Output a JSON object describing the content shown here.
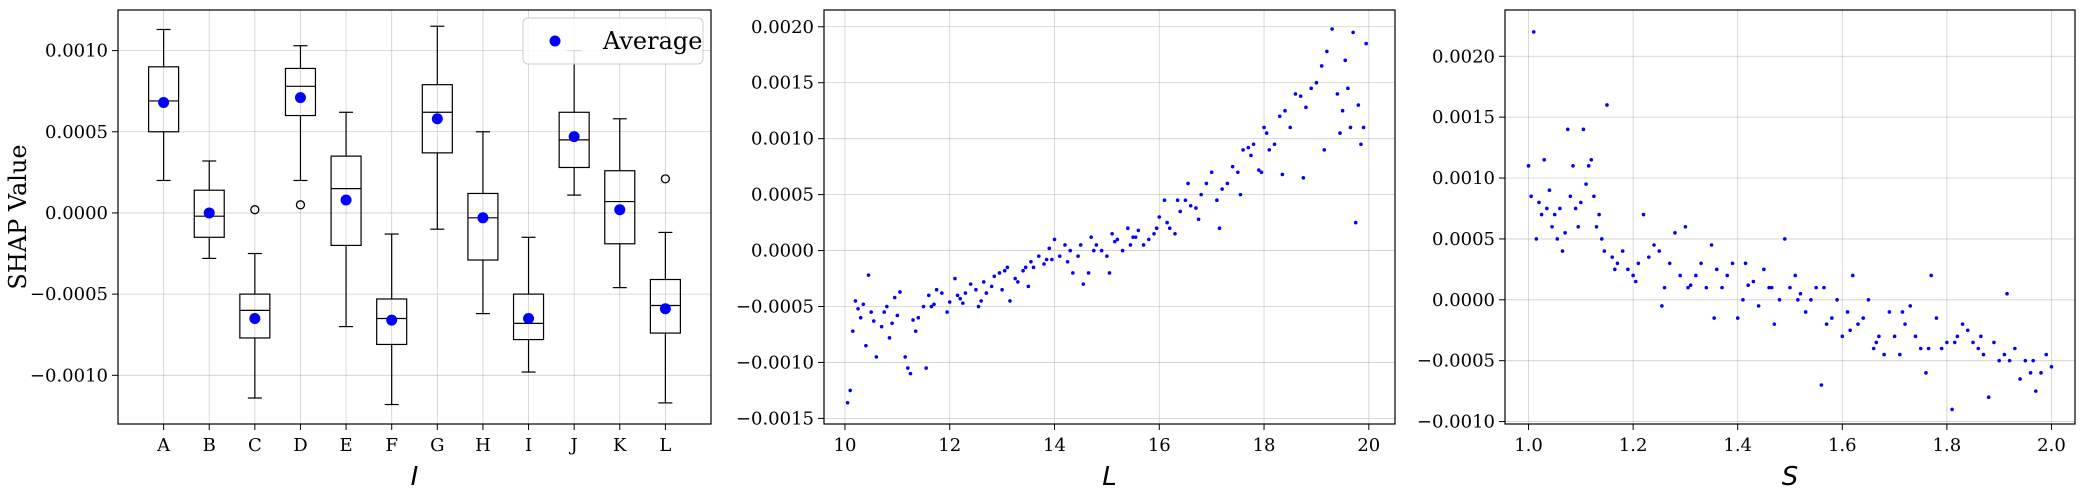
{
  "chart_data": [
    {
      "type": "box",
      "ylabel": "SHAP Value",
      "xlabel": "I",
      "ylim": [
        -0.0013,
        0.00125
      ],
      "yticks": [
        -0.001,
        -0.0005,
        0.0,
        0.0005,
        0.001
      ],
      "ytick_labels": [
        "−0.0010",
        "−0.0005",
        "0.0000",
        "0.0005",
        "0.0010"
      ],
      "categories": [
        "A",
        "B",
        "C",
        "D",
        "E",
        "F",
        "G",
        "H",
        "I",
        "J",
        "K",
        "L"
      ],
      "grid": true,
      "legend": {
        "label": "Average",
        "placement": "top-right",
        "color": "#0000ff"
      },
      "boxes": [
        {
          "whislo": 0.0002,
          "q1": 0.0005,
          "med": 0.00069,
          "q3": 0.0009,
          "whishi": 0.00113,
          "mean": 0.00068,
          "fliers": []
        },
        {
          "whislo": -0.00028,
          "q1": -0.00015,
          "med": -2e-05,
          "q3": 0.00014,
          "whishi": 0.00032,
          "mean": 0.0,
          "fliers": []
        },
        {
          "whislo": -0.00114,
          "q1": -0.00077,
          "med": -0.0006,
          "q3": -0.0005,
          "whishi": -0.00025,
          "mean": -0.00065,
          "fliers": [
            2e-05
          ]
        },
        {
          "whislo": 0.0002,
          "q1": 0.0006,
          "med": 0.00078,
          "q3": 0.00089,
          "whishi": 0.00103,
          "mean": 0.00071,
          "fliers": [
            5e-05
          ]
        },
        {
          "whislo": -0.0007,
          "q1": -0.0002,
          "med": 0.00015,
          "q3": 0.00035,
          "whishi": 0.00062,
          "mean": 8e-05,
          "fliers": []
        },
        {
          "whislo": -0.00118,
          "q1": -0.00081,
          "med": -0.00065,
          "q3": -0.00053,
          "whishi": -0.00013,
          "mean": -0.00066,
          "fliers": []
        },
        {
          "whislo": -0.0001,
          "q1": 0.00037,
          "med": 0.00062,
          "q3": 0.00079,
          "whishi": 0.00115,
          "mean": 0.00058,
          "fliers": []
        },
        {
          "whislo": -0.00062,
          "q1": -0.00029,
          "med": -3e-05,
          "q3": 0.00012,
          "whishi": 0.0005,
          "mean": -3e-05,
          "fliers": []
        },
        {
          "whislo": -0.00098,
          "q1": -0.00078,
          "med": -0.00068,
          "q3": -0.0005,
          "whishi": -0.00015,
          "mean": -0.00065,
          "fliers": []
        },
        {
          "whislo": 0.00011,
          "q1": 0.00028,
          "med": 0.00045,
          "q3": 0.00062,
          "whishi": 0.001,
          "mean": 0.00047,
          "fliers": []
        },
        {
          "whislo": -0.00046,
          "q1": -0.00019,
          "med": 7e-05,
          "q3": 0.00026,
          "whishi": 0.00058,
          "mean": 2e-05,
          "fliers": []
        },
        {
          "whislo": -0.00117,
          "q1": -0.00074,
          "med": -0.00057,
          "q3": -0.00041,
          "whishi": -0.00012,
          "mean": -0.00059,
          "fliers": [
            0.00021
          ]
        }
      ]
    },
    {
      "type": "scatter",
      "xlabel": "L",
      "xlim": [
        9.6,
        20.5
      ],
      "ylim": [
        -0.00155,
        0.00215
      ],
      "xticks": [
        10,
        12,
        14,
        16,
        18,
        20
      ],
      "xtick_labels": [
        "10",
        "12",
        "14",
        "16",
        "18",
        "20"
      ],
      "yticks": [
        -0.0015,
        -0.001,
        -0.0005,
        0.0,
        0.0005,
        0.001,
        0.0015,
        0.002
      ],
      "ytick_labels": [
        "−0.0015",
        "−0.0010",
        "−0.0005",
        "0.0000",
        "0.0005",
        "0.0010",
        "0.0015",
        "0.0020"
      ],
      "grid": true,
      "color": "#0000ff",
      "x": [
        10.05,
        10.1,
        10.15,
        10.2,
        10.25,
        10.3,
        10.35,
        10.45,
        10.5,
        10.55,
        10.6,
        10.7,
        10.75,
        10.8,
        10.9,
        10.95,
        11.0,
        11.05,
        11.15,
        11.2,
        11.25,
        11.3,
        11.4,
        11.5,
        11.55,
        11.6,
        11.7,
        11.75,
        11.85,
        11.95,
        12.0,
        12.1,
        12.2,
        12.25,
        12.3,
        12.4,
        12.5,
        12.55,
        12.6,
        12.7,
        12.8,
        12.85,
        12.95,
        13.0,
        13.1,
        13.15,
        13.25,
        13.3,
        13.4,
        13.5,
        13.55,
        13.6,
        13.7,
        13.8,
        13.9,
        13.95,
        14.0,
        14.1,
        14.2,
        14.25,
        14.35,
        14.45,
        14.5,
        14.55,
        14.65,
        14.7,
        14.8,
        14.9,
        15.0,
        15.05,
        15.1,
        15.2,
        15.3,
        15.4,
        15.45,
        15.5,
        15.6,
        15.7,
        15.8,
        15.9,
        16.0,
        16.1,
        16.15,
        16.2,
        16.3,
        16.4,
        16.5,
        16.55,
        16.6,
        16.7,
        16.8,
        16.9,
        17.0,
        17.1,
        17.2,
        17.3,
        17.4,
        17.5,
        17.6,
        17.7,
        17.75,
        17.8,
        17.9,
        18.0,
        18.05,
        18.1,
        18.2,
        18.3,
        18.4,
        18.5,
        18.6,
        18.7,
        18.8,
        18.9,
        19.0,
        19.1,
        19.2,
        19.3,
        19.4,
        19.5,
        19.55,
        19.6,
        19.7,
        19.8,
        19.85,
        19.9,
        19.95,
        10.4,
        10.85,
        11.35,
        11.65,
        12.15,
        12.65,
        13.05,
        13.45,
        13.85,
        14.3,
        14.75,
        15.15,
        15.55,
        15.95,
        16.35,
        16.75,
        17.15,
        17.55,
        17.95,
        18.35,
        18.75,
        19.15,
        19.45,
        19.65,
        19.75
      ],
      "y": [
        -0.00136,
        -0.00125,
        -0.00072,
        -0.00045,
        -0.00052,
        -0.0006,
        -0.00048,
        -0.00022,
        -0.00055,
        -0.00063,
        -0.00095,
        -0.00068,
        -0.00055,
        -0.0005,
        -0.00065,
        -0.00042,
        -0.00058,
        -0.00037,
        -0.00095,
        -0.00105,
        -0.0011,
        -0.00062,
        -0.0006,
        -0.0005,
        -0.00105,
        -0.0004,
        -0.00048,
        -0.00035,
        -0.00038,
        -0.00055,
        -0.00046,
        -0.00025,
        -0.00043,
        -0.00047,
        -0.00038,
        -0.0003,
        -0.00035,
        -0.0005,
        -0.00045,
        -0.00038,
        -0.00032,
        -0.00023,
        -0.0002,
        -0.00035,
        -0.00015,
        -0.00045,
        -0.00025,
        -0.00028,
        -0.00018,
        -0.00032,
        -0.0001,
        -0.00015,
        -5e-05,
        -0.00012,
        2e-05,
        -8e-05,
        0.0001,
        -5e-05,
        5e-05,
        -0.0001,
        -0.0002,
        -5e-05,
        5e-05,
        -0.0003,
        -0.0002,
        0.00012,
        5e-05,
        0.0,
        -5e-05,
        -0.0002,
        0.00015,
        0.0001,
        0.0,
        0.0002,
        5e-05,
        0.00012,
        0.00018,
        5e-05,
        0.0001,
        0.00015,
        0.0003,
        0.00045,
        0.00025,
        0.0002,
        0.00015,
        0.00035,
        0.00045,
        0.0006,
        0.0004,
        0.00038,
        0.0005,
        0.0006,
        0.0007,
        0.00045,
        0.00055,
        0.0006,
        0.00075,
        0.0007,
        0.0009,
        0.00092,
        0.00085,
        0.00095,
        0.00072,
        0.0011,
        0.00105,
        0.0009,
        0.00095,
        0.0012,
        0.00125,
        0.0011,
        0.0014,
        0.00138,
        0.00128,
        0.00145,
        0.0015,
        0.00165,
        0.00178,
        0.00198,
        0.0014,
        0.00125,
        0.0017,
        0.00145,
        0.00195,
        0.0013,
        0.00095,
        0.0011,
        0.00185,
        -0.00085,
        -0.00078,
        -0.00072,
        -0.0005,
        -0.0004,
        -0.00028,
        -0.00018,
        -0.00015,
        -8e-05,
        0.0,
        0.0,
        8e-05,
        0.00012,
        0.0002,
        0.00045,
        0.00028,
        0.0002,
        0.0005,
        0.0007,
        0.00068,
        0.00065,
        0.0009,
        0.00105,
        0.0011,
        0.00025
      ]
    },
    {
      "type": "scatter",
      "xlabel": "S",
      "xlim": [
        0.955,
        2.045
      ],
      "ylim": [
        -0.00102,
        0.00238
      ],
      "xticks": [
        1.0,
        1.2,
        1.4,
        1.6,
        1.8,
        2.0
      ],
      "xtick_labels": [
        "1.0",
        "1.2",
        "1.4",
        "1.6",
        "1.8",
        "2.0"
      ],
      "yticks": [
        -0.001,
        -0.0005,
        0.0,
        0.0005,
        0.001,
        0.0015,
        0.002
      ],
      "ytick_labels": [
        "−0.0010",
        "−0.0005",
        "0.0000",
        "0.0005",
        "0.0010",
        "0.0015",
        "0.0020"
      ],
      "grid": true,
      "color": "#0000ff",
      "x": [
        1.0,
        1.005,
        1.01,
        1.015,
        1.02,
        1.025,
        1.03,
        1.035,
        1.04,
        1.045,
        1.05,
        1.055,
        1.06,
        1.065,
        1.07,
        1.075,
        1.08,
        1.085,
        1.09,
        1.095,
        1.1,
        1.105,
        1.11,
        1.115,
        1.12,
        1.125,
        1.13,
        1.135,
        1.14,
        1.145,
        1.15,
        1.16,
        1.17,
        1.18,
        1.19,
        1.2,
        1.21,
        1.22,
        1.23,
        1.24,
        1.25,
        1.26,
        1.27,
        1.28,
        1.29,
        1.3,
        1.31,
        1.32,
        1.33,
        1.34,
        1.35,
        1.36,
        1.37,
        1.38,
        1.39,
        1.4,
        1.41,
        1.42,
        1.43,
        1.44,
        1.45,
        1.46,
        1.47,
        1.48,
        1.49,
        1.5,
        1.51,
        1.52,
        1.53,
        1.54,
        1.55,
        1.56,
        1.57,
        1.58,
        1.59,
        1.6,
        1.61,
        1.62,
        1.63,
        1.64,
        1.65,
        1.66,
        1.67,
        1.68,
        1.69,
        1.7,
        1.71,
        1.72,
        1.73,
        1.74,
        1.75,
        1.76,
        1.77,
        1.78,
        1.79,
        1.8,
        1.81,
        1.82,
        1.83,
        1.84,
        1.85,
        1.86,
        1.87,
        1.88,
        1.89,
        1.9,
        1.91,
        1.92,
        1.93,
        1.94,
        1.95,
        1.96,
        1.97,
        1.98,
        1.99,
        2.0,
        1.165,
        1.205,
        1.255,
        1.305,
        1.355,
        1.415,
        1.465,
        1.515,
        1.565,
        1.615,
        1.665,
        1.715,
        1.765,
        1.815,
        1.865,
        1.915,
        1.965
      ],
      "y": [
        0.0011,
        0.00085,
        0.0022,
        0.0005,
        0.0008,
        0.0007,
        0.00115,
        0.00075,
        0.0009,
        0.0006,
        0.0007,
        0.0005,
        0.00075,
        0.0004,
        0.00055,
        0.0014,
        0.00085,
        0.0011,
        0.00075,
        0.0006,
        0.0008,
        0.0014,
        0.00095,
        0.0011,
        0.00115,
        0.00085,
        0.0006,
        0.0007,
        0.0005,
        0.0004,
        0.0016,
        0.00035,
        0.0003,
        0.0004,
        0.00025,
        0.0002,
        0.0003,
        0.0007,
        0.00035,
        0.00045,
        0.0004,
        0.0001,
        0.0003,
        0.00055,
        0.0002,
        0.0006,
        0.00012,
        0.0002,
        0.0003,
        0.0001,
        0.00045,
        0.00025,
        0.0001,
        0.0002,
        0.0003,
        -0.00015,
        0.0,
        0.00012,
        0.00015,
        -5e-05,
        0.00025,
        0.0001,
        -0.0002,
        0.0,
        0.0005,
        0.0001,
        0.0002,
        5e-05,
        -0.0001,
        0.0,
        0.0001,
        -0.0007,
        -0.0002,
        -0.00015,
        0.0,
        -0.0003,
        -0.0001,
        0.0002,
        -0.0002,
        -0.00015,
        0.0,
        -0.0004,
        -0.0003,
        -0.00045,
        -0.0001,
        -0.0003,
        -0.00045,
        -0.0002,
        -5e-05,
        -0.0003,
        -0.0004,
        -0.0006,
        0.0002,
        -0.00015,
        -0.0004,
        -0.00035,
        -0.0009,
        -0.0003,
        -0.0002,
        -0.00025,
        -0.00035,
        -0.0004,
        -0.00045,
        -0.0008,
        -0.00035,
        -0.0005,
        -0.00045,
        -0.0005,
        -0.0004,
        -0.00065,
        -0.0005,
        -0.0006,
        -0.00075,
        -0.0006,
        -0.00045,
        -0.00055,
        0.00025,
        0.00015,
        -5e-05,
        0.0001,
        -0.00015,
        0.0003,
        0.0001,
        0.0,
        0.0001,
        -0.00025,
        -0.00035,
        -0.0001,
        -0.0004,
        -0.00035,
        -0.0003,
        5e-05,
        -0.0005
      ]
    }
  ]
}
